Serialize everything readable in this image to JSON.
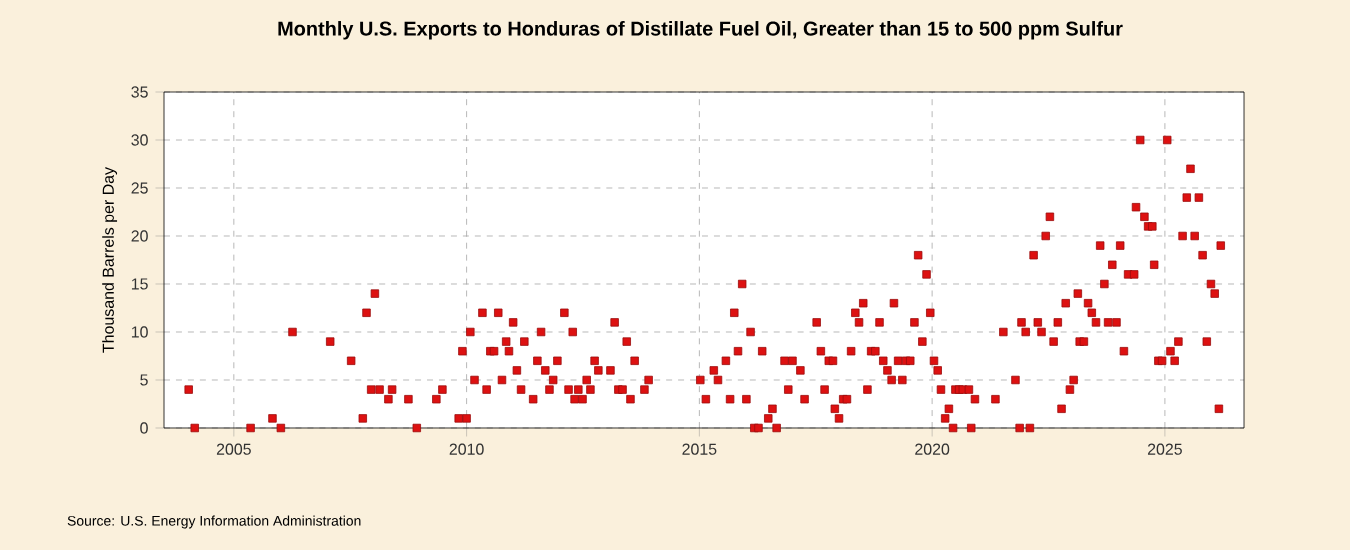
{
  "chart_data": {
    "type": "scatter",
    "title": "Monthly U.S. Exports to Honduras of Distillate Fuel Oil, Greater than 15 to 500 ppm Sulfur",
    "ylabel": "Thousand Barrels per Day",
    "annotations": [
      "Source: U.S. Energy Information Administration"
    ],
    "x": [
      2004.03,
      2004.16,
      2005.36,
      2005.83,
      2006.01,
      2006.26,
      2007.07,
      2007.52,
      2007.77,
      2007.85,
      2007.95,
      2008.03,
      2008.13,
      2008.32,
      2008.4,
      2008.75,
      2008.93,
      2009.35,
      2009.48,
      2009.83,
      2009.91,
      2010.0,
      2010.08,
      2010.17,
      2010.34,
      2010.43,
      2010.51,
      2010.59,
      2010.68,
      2010.76,
      2010.85,
      2010.91,
      2011.0,
      2011.08,
      2011.17,
      2011.24,
      2011.43,
      2011.52,
      2011.6,
      2011.69,
      2011.78,
      2011.86,
      2011.95,
      2012.1,
      2012.19,
      2012.28,
      2012.32,
      2012.4,
      2012.49,
      2012.58,
      2012.66,
      2012.75,
      2012.83,
      2013.09,
      2013.18,
      2013.26,
      2013.35,
      2013.44,
      2013.52,
      2013.61,
      2013.82,
      2013.91,
      2015.02,
      2015.14,
      2015.31,
      2015.4,
      2015.57,
      2015.66,
      2015.75,
      2015.83,
      2015.92,
      2016.01,
      2016.1,
      2016.18,
      2016.27,
      2016.35,
      2016.48,
      2016.57,
      2016.66,
      2016.83,
      2016.91,
      2017.0,
      2017.17,
      2017.26,
      2017.52,
      2017.61,
      2017.69,
      2017.78,
      2017.87,
      2017.91,
      2018.0,
      2018.09,
      2018.17,
      2018.26,
      2018.35,
      2018.43,
      2018.52,
      2018.61,
      2018.69,
      2018.78,
      2018.87,
      2018.95,
      2019.04,
      2019.13,
      2019.18,
      2019.27,
      2019.36,
      2019.44,
      2019.53,
      2019.62,
      2019.7,
      2019.79,
      2019.88,
      2019.96,
      2020.04,
      2020.12,
      2020.19,
      2020.28,
      2020.36,
      2020.45,
      2020.5,
      2020.58,
      2020.66,
      2020.79,
      2020.84,
      2020.92,
      2021.36,
      2021.53,
      2021.79,
      2021.88,
      2021.92,
      2022.01,
      2022.1,
      2022.18,
      2022.27,
      2022.35,
      2022.44,
      2022.53,
      2022.61,
      2022.7,
      2022.78,
      2022.87,
      2022.96,
      2023.04,
      2023.13,
      2023.17,
      2023.26,
      2023.35,
      2023.43,
      2023.52,
      2023.61,
      2023.7,
      2023.78,
      2023.87,
      2023.96,
      2024.04,
      2024.12,
      2024.21,
      2024.34,
      2024.38,
      2024.47,
      2024.56,
      2024.64,
      2024.73,
      2024.77,
      2024.86,
      2024.94,
      2025.05,
      2025.12,
      2025.21,
      2025.29,
      2025.38,
      2025.47,
      2025.55,
      2025.64,
      2025.73,
      2025.81,
      2025.9,
      2025.99,
      2026.07,
      2026.16,
      2026.2
    ],
    "series": [
      {
        "color": "#dd1111",
        "values": [
          4,
          0,
          0,
          1,
          0,
          10,
          9,
          7,
          1,
          12,
          4,
          14,
          4,
          3,
          4,
          3,
          0,
          3,
          4,
          1,
          8,
          1,
          10,
          5,
          12,
          4,
          8,
          8,
          12,
          5,
          9,
          8,
          11,
          6,
          4,
          9,
          3,
          7,
          10,
          6,
          4,
          5,
          7,
          12,
          4,
          10,
          3,
          4,
          3,
          5,
          4,
          7,
          6,
          6,
          11,
          4,
          4,
          9,
          3,
          7,
          4,
          5,
          5,
          3,
          6,
          5,
          7,
          3,
          12,
          8,
          15,
          3,
          10,
          0,
          0,
          8,
          1,
          2,
          0,
          7,
          4,
          7,
          6,
          3,
          11,
          8,
          4,
          7,
          7,
          2,
          1,
          3,
          3,
          8,
          12,
          11,
          13,
          4,
          8,
          8,
          11,
          7,
          6,
          5,
          13,
          7,
          5,
          7,
          7,
          11,
          18,
          9,
          16,
          12,
          7,
          6,
          4,
          1,
          2,
          0,
          4,
          4,
          4,
          4,
          0,
          3,
          3,
          10,
          5,
          0,
          11,
          10,
          0,
          18,
          11,
          10,
          20,
          22,
          9,
          11,
          2,
          13,
          4,
          5,
          14,
          9,
          9,
          13,
          12,
          11,
          19,
          15,
          11,
          17,
          11,
          19,
          8,
          16,
          16,
          23,
          30,
          22,
          21,
          21,
          17,
          7,
          7,
          30,
          8,
          7,
          9,
          20,
          24,
          27,
          20,
          24,
          18,
          9,
          15,
          14,
          2,
          19
        ]
      }
    ],
    "xlim": [
      2003.5,
      2026.7
    ],
    "ylim": [
      0,
      35
    ],
    "xticks": [
      2005,
      2010,
      2015,
      2020,
      2025
    ],
    "yticks": [
      0,
      5,
      10,
      15,
      20,
      25,
      30,
      35
    ],
    "grid": true,
    "marker": "square"
  }
}
